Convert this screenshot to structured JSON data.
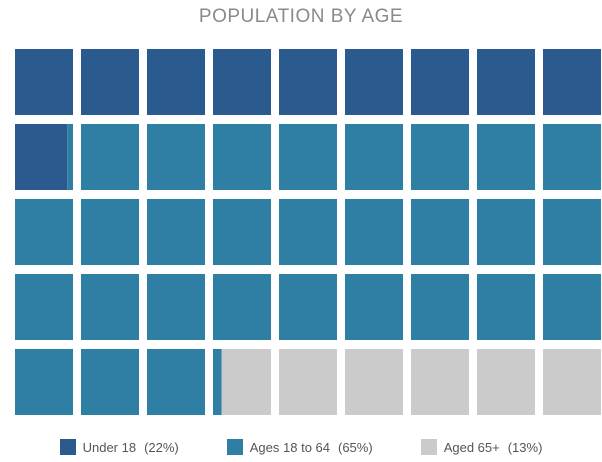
{
  "chart_data": {
    "type": "waffle",
    "title": "POPULATION BY AGE",
    "rows": 5,
    "cols": 9,
    "series": [
      {
        "name": "Under 18",
        "label": "(22%)",
        "value": 22,
        "color": "#2b5a8e"
      },
      {
        "name": "Ages 18 to 64",
        "label": "(65%)",
        "value": 65,
        "color": "#2e7fa3"
      },
      {
        "name": "Aged 65+",
        "label": "(13%)",
        "value": 13,
        "color": "#cbcbcb"
      }
    ],
    "legend_position": "bottom"
  }
}
